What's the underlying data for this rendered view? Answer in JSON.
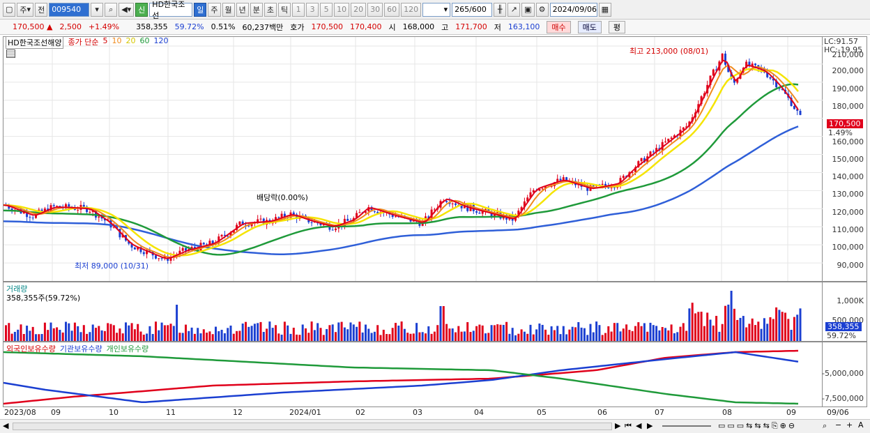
{
  "toolbar": {
    "market": "주",
    "prev": "전",
    "code": "009540",
    "badge": "신",
    "name": "HD한국조선",
    "periods": [
      "일",
      "주",
      "월",
      "년",
      "분",
      "초",
      "틱"
    ],
    "intervals": [
      "1",
      "3",
      "5",
      "10",
      "20",
      "30",
      "60",
      "120"
    ],
    "count": "265",
    "count_total": "/600",
    "date": "2024/09/06"
  },
  "quote": {
    "price": "170,500",
    "change": "2,500",
    "change_pct": "+1.49%",
    "volume": "358,355",
    "vol_ratio": "59.72%",
    "turnover": "0.51%",
    "amount": "60,237백만",
    "bid_label": "호가",
    "bid": "170,500",
    "ask": "170,400",
    "open_label": "시",
    "open": "168,000",
    "high_label": "고",
    "high": "171,700",
    "low_label": "저",
    "low": "163,100",
    "buy": "매수",
    "sell": "매도",
    "eval": "평"
  },
  "price_panel": {
    "title": "HD한국조선해양",
    "ma_label": "종가 단순",
    "ma_periods": [
      "5",
      "10",
      "20",
      "60",
      "120"
    ],
    "lc": "LC:91.57",
    "hc": "HC:-19.95",
    "high_annot": "최고 213,000 (08/01)",
    "low_annot": "최저 89,000 (10/31)",
    "div_annot": "배당락(0.00%)",
    "last_price": "170,500",
    "last_pct": "1.49%",
    "yticks": [
      "210,000",
      "200,000",
      "190,000",
      "180,000",
      "160,000",
      "150,000",
      "140,000",
      "130,000",
      "120,000",
      "110,000",
      "100,000",
      "90,000"
    ]
  },
  "volume_panel": {
    "title": "거래량",
    "value": "358,355주(59.72%)",
    "ticks": [
      "1,000K",
      "500,000"
    ],
    "last": "358,355",
    "last_pct": "59.72%"
  },
  "holdings_panel": {
    "series": [
      "외국인보유수량",
      "기관보유수량",
      "개인보유수량"
    ],
    "ticks": [
      "-5,000,000",
      "-7,500,000"
    ]
  },
  "xaxis": [
    "2023/08",
    "09",
    "10",
    "11",
    "12",
    "2024/01",
    "02",
    "03",
    "04",
    "05",
    "06",
    "07",
    "08",
    "09"
  ],
  "xaxis_right": "09/06",
  "colors": {
    "up": "#e0001b",
    "down": "#1b3fd1",
    "ma5": "#e0001b",
    "ma10": "#f08a1c",
    "ma20": "#f5e400",
    "ma60": "#1f9a3a",
    "ma120": "#2f5fd8"
  }
}
